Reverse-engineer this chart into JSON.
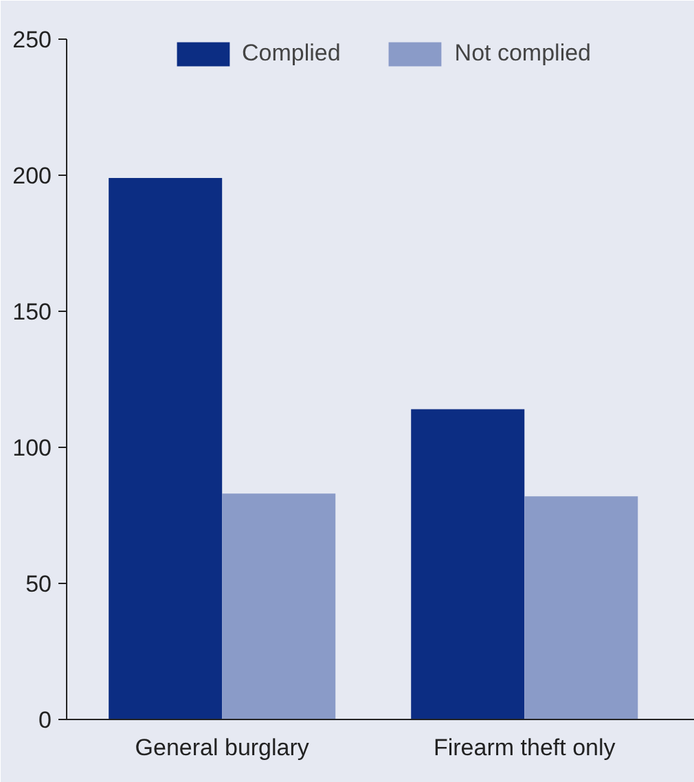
{
  "chart_data": {
    "type": "bar",
    "categories": [
      "General burglary",
      "Firearm theft only"
    ],
    "series": [
      {
        "name": "Complied",
        "color": "#0c2d83",
        "values": [
          199,
          114
        ]
      },
      {
        "name": "Not complied",
        "color": "#8a9bc8",
        "values": [
          83,
          82
        ]
      }
    ],
    "ylim": [
      0,
      250
    ],
    "yticks": [
      0,
      50,
      100,
      150,
      200,
      250
    ],
    "grid": false,
    "legend": "top"
  }
}
